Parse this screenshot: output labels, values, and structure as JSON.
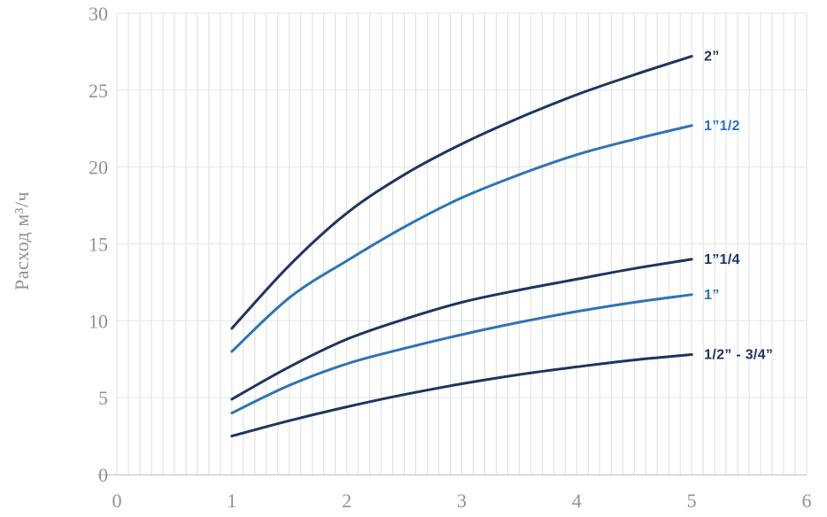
{
  "chart_data": {
    "type": "line",
    "title": "",
    "xlabel": "",
    "ylabel": "Расход м³/ч",
    "xlim": [
      0,
      6
    ],
    "ylim": [
      0,
      30
    ],
    "x_ticks": [
      0,
      1,
      2,
      3,
      4,
      5,
      6
    ],
    "y_ticks": [
      0,
      5,
      10,
      15,
      20,
      25,
      30
    ],
    "minor_x_grid_step": 0.1,
    "grid": "on",
    "legend_position": "right-end-of-line",
    "x": [
      1,
      1.5,
      2,
      2.5,
      3,
      3.5,
      4,
      4.5,
      5
    ],
    "series": [
      {
        "name": "2”",
        "color": "#1d3561",
        "values": [
          9.5,
          13.6,
          17.0,
          19.5,
          21.5,
          23.2,
          24.7,
          26.0,
          27.2
        ]
      },
      {
        "name": "1”1/2",
        "color": "#2e74b5",
        "values": [
          8.0,
          11.5,
          13.9,
          16.1,
          18.0,
          19.5,
          20.8,
          21.8,
          22.7
        ]
      },
      {
        "name": "1”1/4",
        "color": "#1d3561",
        "values": [
          4.9,
          7.0,
          8.8,
          10.1,
          11.2,
          12.0,
          12.7,
          13.4,
          14.0
        ]
      },
      {
        "name": "1”",
        "color": "#2e74b5",
        "values": [
          4.0,
          5.8,
          7.2,
          8.2,
          9.1,
          9.9,
          10.6,
          11.2,
          11.7
        ]
      },
      {
        "name": "1/2” - 3/4”",
        "color": "#1d3561",
        "values": [
          2.5,
          3.5,
          4.4,
          5.2,
          5.9,
          6.5,
          7.0,
          7.45,
          7.8
        ]
      }
    ]
  },
  "colors": {
    "grid_vertical": "#dcdfe2",
    "grid_horizontal": "#e3e5e7",
    "axis_line": "#c3c6c9",
    "tick_text": "#8f9196",
    "dark_line": "#1d3561",
    "light_line": "#2e74b5",
    "background": "#ffffff"
  }
}
